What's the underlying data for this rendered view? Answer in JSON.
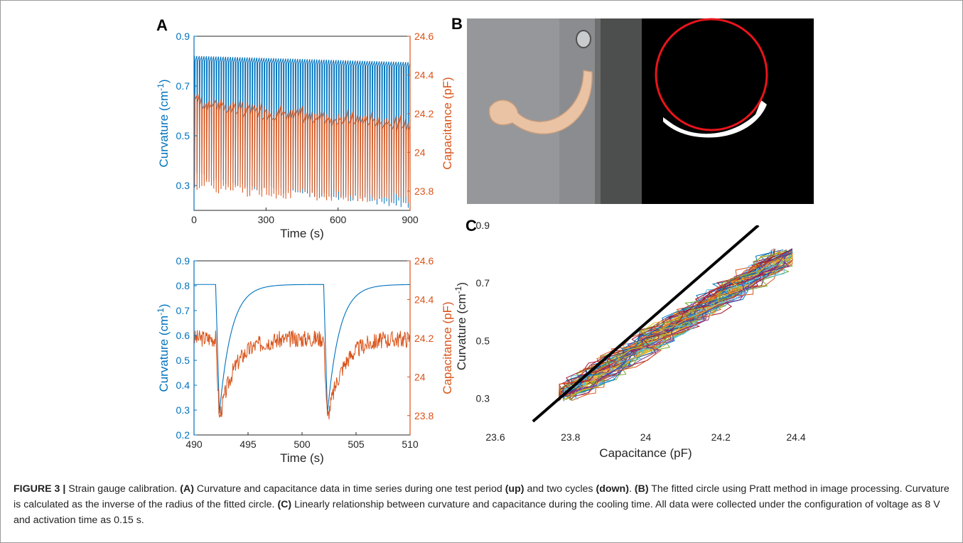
{
  "figure_label": "FIGURE 3 |",
  "caption": {
    "s1": "Strain gauge calibration.",
    "a_label": "(A)",
    "s2": "Curvature and capacitance data in time series during one test period",
    "up": "(up)",
    "s3": "and two cycles",
    "down": "(down)",
    "s3b": ".",
    "b_label": "(B)",
    "s4": "The fitted circle using Pratt method in image processing. Curvature is calculated as the inverse of the radius of the fitted circle.",
    "c_label": "(C)",
    "s5": "Linearly relationship between curvature and capacitance during the cooling time. All data were collected under the configuration of voltage as 8 V and activation time as 0.15 s."
  },
  "panels": {
    "a": "A",
    "b": "B",
    "c": "C"
  },
  "colors": {
    "curvature": "#0072BD",
    "capacitance": "#D95319",
    "fit": "#000000"
  },
  "chart_data": [
    {
      "id": "A-top",
      "type": "line",
      "xlabel": "Time (s)",
      "ylabel_left": "Curvature (cm",
      "ylabel_left_sup": "-1",
      "ylabel_left_end": ")",
      "ylabel_right": "Capacitance (pF)",
      "xlim": [
        0,
        900
      ],
      "ylim_left": [
        0.2,
        0.9
      ],
      "ylim_right": [
        23.7,
        24.6
      ],
      "xticks": [
        0,
        300,
        600,
        900
      ],
      "xtick_labels": [
        "0",
        "300",
        "600",
        "900"
      ],
      "yticks_left": [
        0.3,
        0.5,
        0.7,
        0.9
      ],
      "ytick_labels_left": [
        "0.3",
        "0.5",
        "0.7",
        "0.9"
      ],
      "yticks_right": [
        23.8,
        24,
        24.2,
        24.4,
        24.6
      ],
      "ytick_labels_right": [
        "23.8",
        "24",
        "24.2",
        "24.4",
        "24.6"
      ],
      "cycle_period_s": 10,
      "series": [
        {
          "axis": "left",
          "peak_start": 0.82,
          "peak_end": 0.795,
          "trough_start": 0.36,
          "trough_end": 0.225
        },
        {
          "axis": "right",
          "base_start": 24.3,
          "base_end": 24.16,
          "trough_start": 23.84,
          "trough_end": 23.76
        }
      ]
    },
    {
      "id": "A-bottom",
      "type": "line",
      "xlabel": "Time (s)",
      "ylabel_left": "Curvature (cm",
      "ylabel_left_sup": "-1",
      "ylabel_left_end": ")",
      "ylabel_right": "Capacitance (pF)",
      "xlim": [
        490,
        510
      ],
      "ylim_left": [
        0.2,
        0.9
      ],
      "ylim_right": [
        23.7,
        24.6
      ],
      "xticks": [
        490,
        495,
        500,
        505,
        510
      ],
      "xtick_labels": [
        "490",
        "495",
        "500",
        "505",
        "510"
      ],
      "yticks_left": [
        0.2,
        0.3,
        0.4,
        0.5,
        0.6,
        0.7,
        0.8,
        0.9
      ],
      "ytick_labels_left": [
        "0.2",
        "0.3",
        "0.4",
        "0.5",
        "0.6",
        "0.7",
        "0.8",
        "0.9"
      ],
      "yticks_right": [
        23.8,
        24,
        24.2,
        24.4,
        24.6
      ],
      "ytick_labels_right": [
        "23.8",
        "24",
        "24.2",
        "24.4",
        "24.6"
      ],
      "cycle_starts": [
        492,
        502
      ],
      "series": [
        {
          "axis": "left",
          "peak": 0.805,
          "trough": 0.285
        },
        {
          "axis": "right",
          "base": 24.2,
          "trough": 23.78
        }
      ]
    },
    {
      "id": "C",
      "type": "line",
      "xlabel": "Capacitance (pF)",
      "ylabel": "Curvature (cm",
      "ylabel_sup": "-1",
      "ylabel_end": ")",
      "xlim": [
        23.6,
        24.4
      ],
      "ylim": [
        0.2,
        0.9
      ],
      "xticks": [
        23.6,
        23.8,
        24,
        24.2,
        24.4
      ],
      "xtick_labels": [
        "23.6",
        "23.8",
        "24",
        "24.2",
        "24.4"
      ],
      "yticks": [
        0.3,
        0.5,
        0.7,
        0.9
      ],
      "ytick_labels": [
        "0.3",
        "0.5",
        "0.7",
        "0.9"
      ],
      "fit_line": {
        "x": [
          23.7,
          24.3
        ],
        "y": [
          0.22,
          0.9
        ]
      },
      "data_band": {
        "x_min": 23.77,
        "x_max": 24.39,
        "y_min": 0.3,
        "y_max": 0.81,
        "n_cycles": 60
      }
    }
  ]
}
